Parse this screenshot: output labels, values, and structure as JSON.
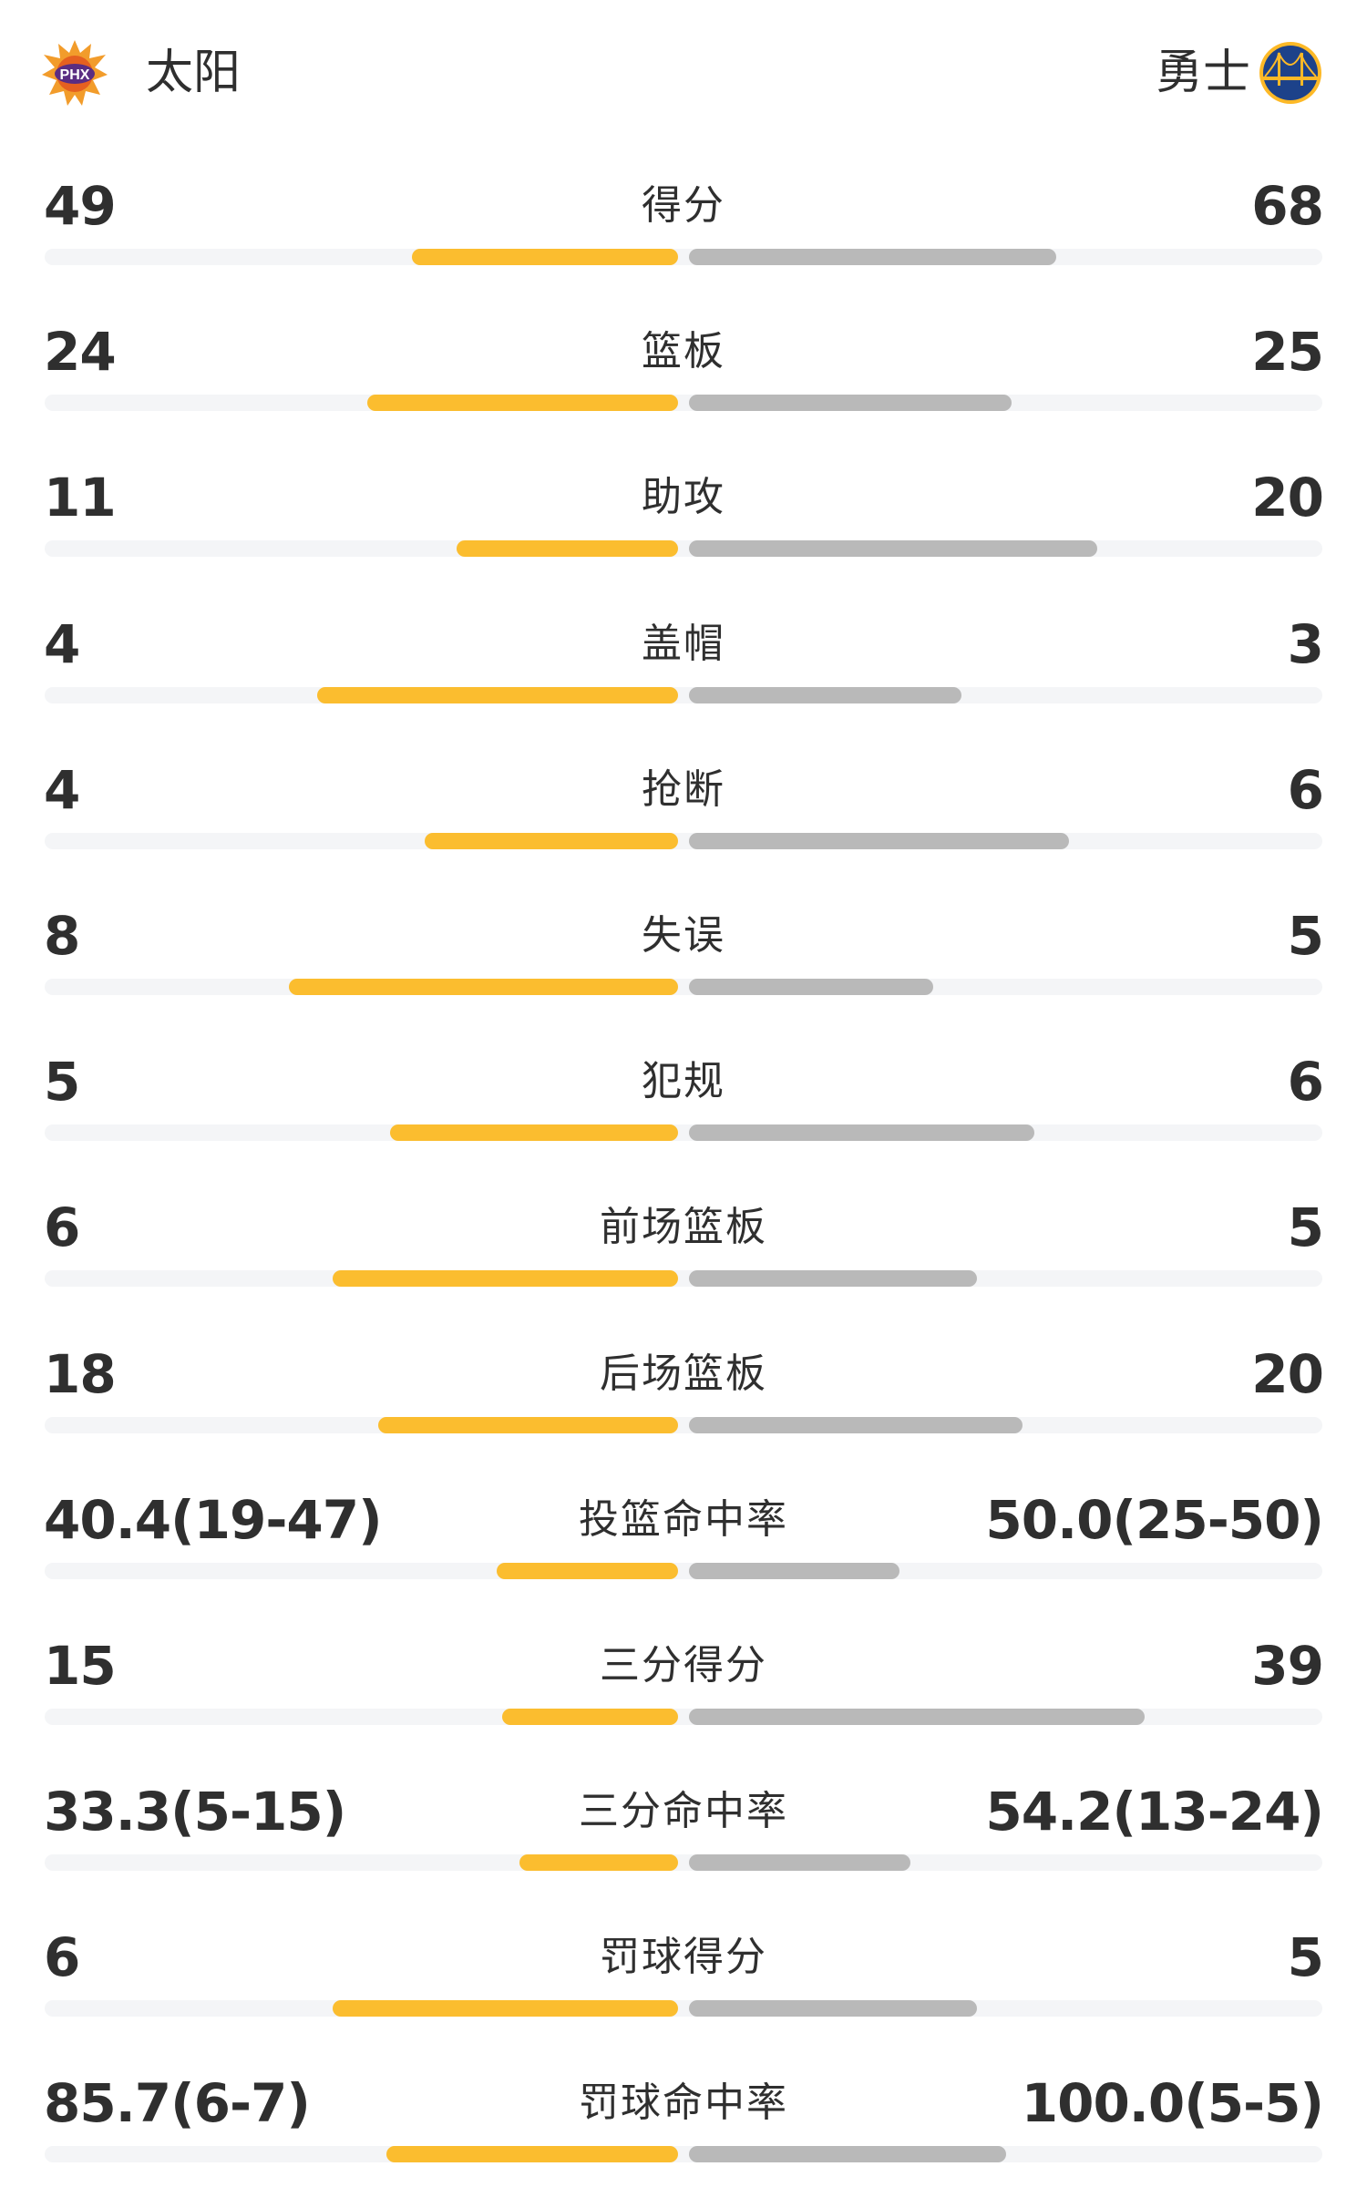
{
  "header": {
    "home": {
      "name": "太阳",
      "logo_text": "PHX",
      "logo_icon": "suns-logo"
    },
    "away": {
      "name": "勇士",
      "logo_icon": "warriors-logo"
    }
  },
  "colors": {
    "home_bar": "#fbbd2f",
    "away_bar": "#b9b9b9",
    "track": "#f4f5f7",
    "text": "#2f2f2f"
  },
  "stats": [
    {
      "label": "得分",
      "home": "49",
      "away": "68",
      "home_fill": 0.42,
      "away_fill": 0.58
    },
    {
      "label": "篮板",
      "home": "24",
      "away": "25",
      "home_fill": 0.49,
      "away_fill": 0.51
    },
    {
      "label": "助攻",
      "home": "11",
      "away": "20",
      "home_fill": 0.35,
      "away_fill": 0.645
    },
    {
      "label": "盖帽",
      "home": "4",
      "away": "3",
      "home_fill": 0.57,
      "away_fill": 0.43
    },
    {
      "label": "抢断",
      "home": "4",
      "away": "6",
      "home_fill": 0.4,
      "away_fill": 0.6
    },
    {
      "label": "失误",
      "home": "8",
      "away": "5",
      "home_fill": 0.615,
      "away_fill": 0.385
    },
    {
      "label": "犯规",
      "home": "5",
      "away": "6",
      "home_fill": 0.455,
      "away_fill": 0.545
    },
    {
      "label": "前场篮板",
      "home": "6",
      "away": "5",
      "home_fill": 0.546,
      "away_fill": 0.454
    },
    {
      "label": "后场篮板",
      "home": "18",
      "away": "20",
      "home_fill": 0.474,
      "away_fill": 0.526
    },
    {
      "label": "投篮命中率",
      "home": "40.4(19-47)",
      "away": "50.0(25-50)",
      "home_fill": 0.286,
      "away_fill": 0.333
    },
    {
      "label": "三分得分",
      "home": "15",
      "away": "39",
      "home_fill": 0.278,
      "away_fill": 0.72
    },
    {
      "label": "三分命中率",
      "home": "33.3(5-15)",
      "away": "54.2(13-24)",
      "home_fill": 0.25,
      "away_fill": 0.35
    },
    {
      "label": "罚球得分",
      "home": "6",
      "away": "5",
      "home_fill": 0.546,
      "away_fill": 0.454
    },
    {
      "label": "罚球命中率",
      "home": "85.7(6-7)",
      "away": "100.0(5-5)",
      "home_fill": 0.46,
      "away_fill": 0.5
    }
  ]
}
